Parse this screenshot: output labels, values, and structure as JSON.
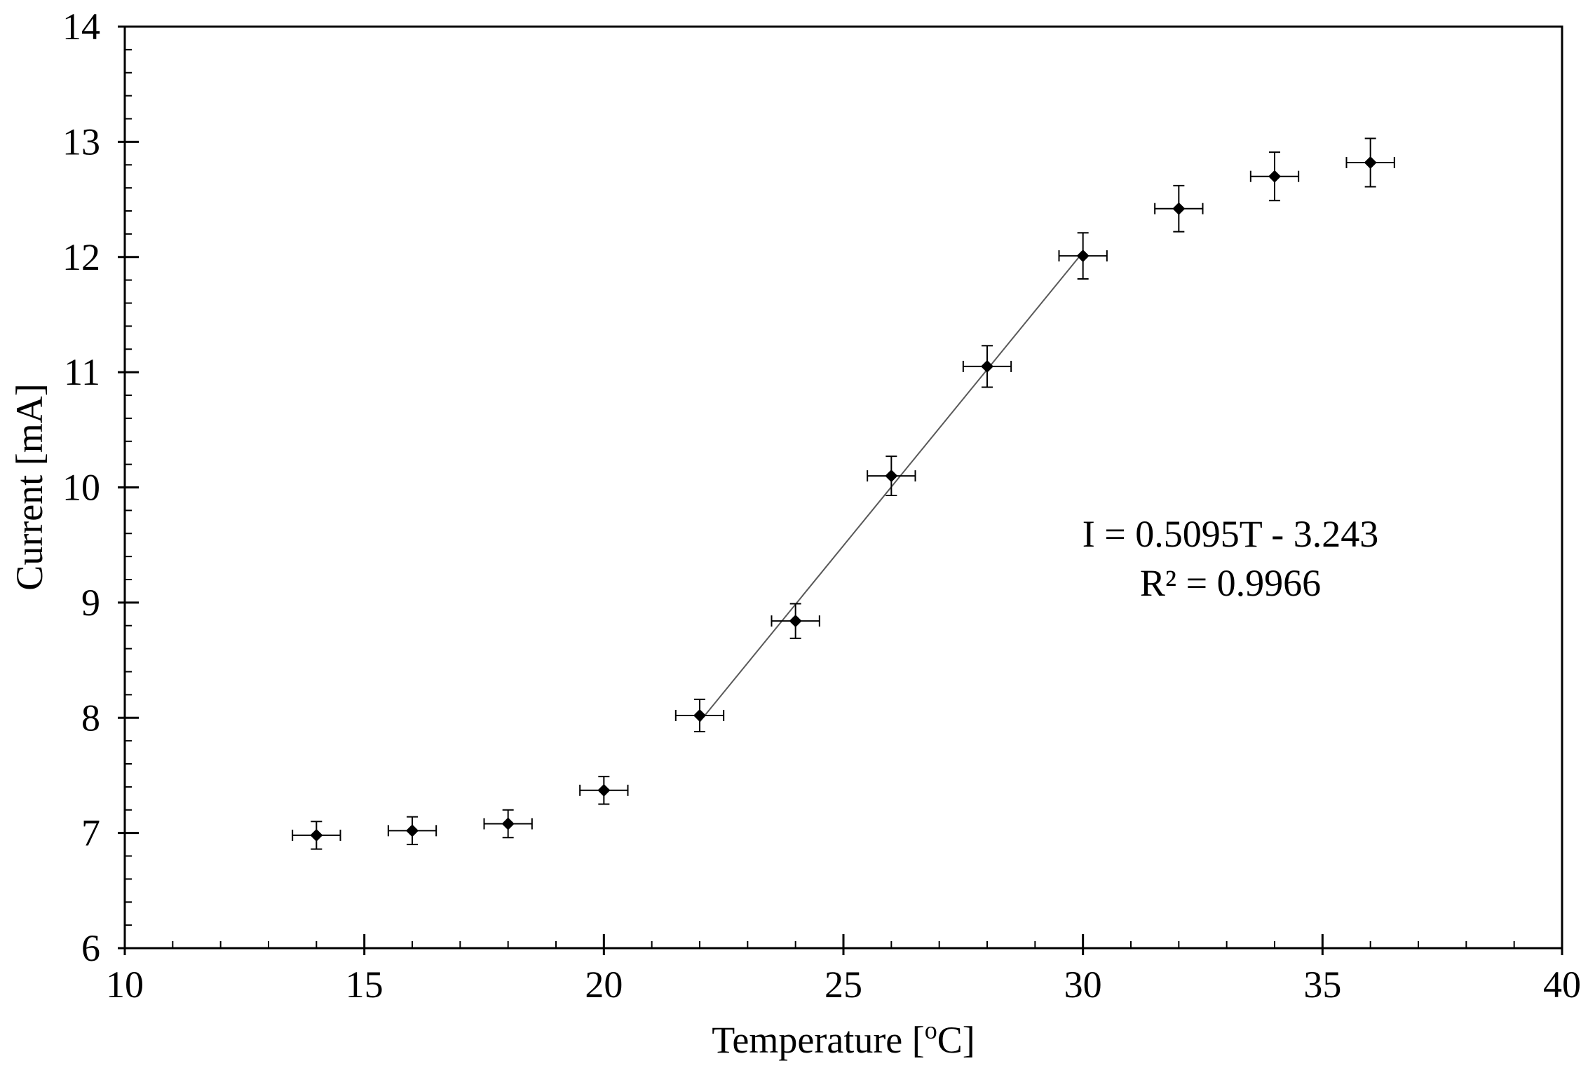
{
  "chart_data": {
    "type": "scatter",
    "title": "",
    "xlabel_main": "Temperature [",
    "xlabel_sup": "o",
    "xlabel_end": "C]",
    "ylabel": "Current [mA]",
    "xlim": [
      10,
      40
    ],
    "ylim": [
      6,
      14
    ],
    "xticks": [
      "10",
      "15",
      "20",
      "25",
      "30",
      "35",
      "40"
    ],
    "yticks": [
      "6",
      "7",
      "8",
      "9",
      "10",
      "11",
      "12",
      "13",
      "14"
    ],
    "x_minor_step": 1,
    "y_minor_step": 0.2,
    "grid": false,
    "points": [
      {
        "x": 14,
        "y": 6.98,
        "yerr": 0.12,
        "xerr": 0.5
      },
      {
        "x": 16,
        "y": 7.02,
        "yerr": 0.12,
        "xerr": 0.5
      },
      {
        "x": 18,
        "y": 7.08,
        "yerr": 0.12,
        "xerr": 0.5
      },
      {
        "x": 20,
        "y": 7.37,
        "yerr": 0.12,
        "xerr": 0.5
      },
      {
        "x": 22,
        "y": 8.02,
        "yerr": 0.14,
        "xerr": 0.5
      },
      {
        "x": 24,
        "y": 8.84,
        "yerr": 0.15,
        "xerr": 0.5
      },
      {
        "x": 26,
        "y": 10.1,
        "yerr": 0.17,
        "xerr": 0.5
      },
      {
        "x": 28,
        "y": 11.05,
        "yerr": 0.18,
        "xerr": 0.5
      },
      {
        "x": 30,
        "y": 12.01,
        "yerr": 0.2,
        "xerr": 0.5
      },
      {
        "x": 32,
        "y": 12.42,
        "yerr": 0.2,
        "xerr": 0.5
      },
      {
        "x": 34,
        "y": 12.7,
        "yerr": 0.21,
        "xerr": 0.5
      },
      {
        "x": 36,
        "y": 12.82,
        "yerr": 0.21,
        "xerr": 0.5
      }
    ],
    "trendline": {
      "x_range": [
        22,
        30
      ],
      "slope": 0.5095,
      "intercept": -3.243,
      "equation": "I = 0.5095T - 3.243",
      "r_squared": "R² = 0.9966"
    },
    "colors": {
      "marker": "#000000",
      "trendline": "#595959",
      "axis": "#000000"
    }
  }
}
